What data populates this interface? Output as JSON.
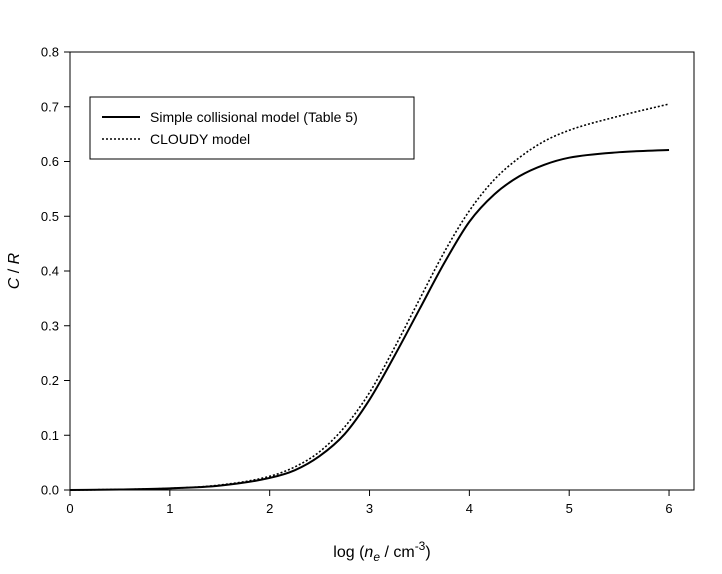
{
  "chart_data": {
    "type": "line",
    "xlabel": {
      "prefix": "log (",
      "italic": "n",
      "subscript": "e",
      "middle": " / cm",
      "superscript": "-3",
      "suffix": ")"
    },
    "ylabel": {
      "italic_c": "C",
      "sep": " / ",
      "italic_r": "R"
    },
    "xlim": [
      0,
      6.25
    ],
    "ylim": [
      0,
      0.8
    ],
    "xticks": [
      "0",
      "1",
      "2",
      "3",
      "4",
      "5",
      "6"
    ],
    "yticks": [
      "0.0",
      "0.1",
      "0.2",
      "0.3",
      "0.4",
      "0.5",
      "0.6",
      "0.7",
      "0.8"
    ],
    "legend_placement": "top-left",
    "grid": false,
    "series": [
      {
        "name": "Simple collisional model (Table 5)",
        "style": "solid",
        "color": "#000000",
        "x": [
          0,
          0.5,
          1.0,
          1.5,
          2.0,
          2.25,
          2.5,
          2.75,
          3.0,
          3.25,
          3.5,
          3.75,
          4.0,
          4.25,
          4.5,
          4.75,
          5.0,
          5.5,
          6.0
        ],
        "y": [
          0.0,
          0.001,
          0.003,
          0.008,
          0.022,
          0.036,
          0.062,
          0.102,
          0.165,
          0.245,
          0.33,
          0.415,
          0.49,
          0.54,
          0.573,
          0.594,
          0.607,
          0.617,
          0.621
        ]
      },
      {
        "name": "CLOUDY model",
        "style": "dotted",
        "color": "#000000",
        "x": [
          0,
          0.5,
          1.0,
          1.5,
          2.0,
          2.25,
          2.5,
          2.75,
          3.0,
          3.25,
          3.5,
          3.75,
          4.0,
          4.25,
          4.5,
          4.75,
          5.0,
          5.5,
          6.0
        ],
        "y": [
          0.0,
          0.001,
          0.003,
          0.009,
          0.025,
          0.042,
          0.07,
          0.115,
          0.178,
          0.26,
          0.348,
          0.435,
          0.51,
          0.567,
          0.607,
          0.637,
          0.657,
          0.683,
          0.705
        ]
      }
    ]
  }
}
